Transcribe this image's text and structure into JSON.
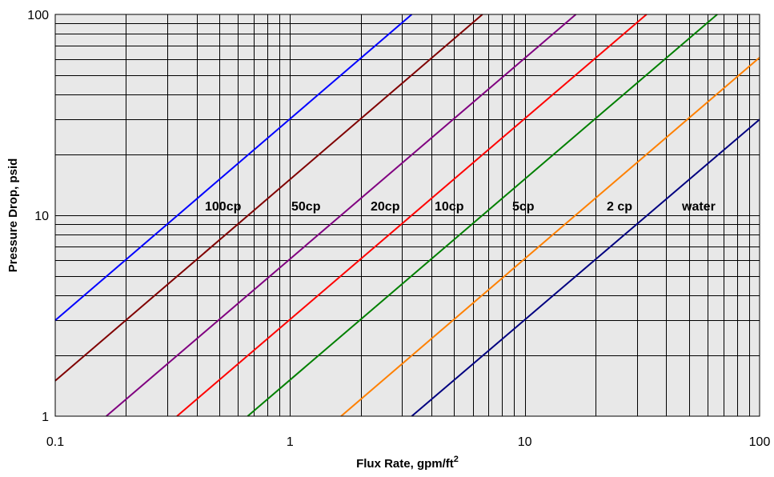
{
  "chart_data": {
    "type": "line",
    "xlabel": "Flux Rate, gpm/ft",
    "xlabel_superscript": "2",
    "ylabel": "Pressure Drop, psid",
    "x_scale": "log",
    "y_scale": "log",
    "xlim": [
      0.1,
      100
    ],
    "ylim": [
      1,
      100
    ],
    "x_ticks": [
      "0.1",
      "1",
      "10",
      "100"
    ],
    "y_ticks": [
      "1",
      "10",
      "100"
    ],
    "grid": true,
    "legend": "none",
    "plot_background": "#e8e8e8",
    "series": [
      {
        "name": "100cp",
        "color": "#0000ff",
        "x": [
          0.1,
          3.3
        ],
        "y": [
          3.0,
          100
        ]
      },
      {
        "name": "50cp",
        "color": "#800000",
        "x": [
          0.1,
          6.6
        ],
        "y": [
          1.5,
          100
        ]
      },
      {
        "name": "20cp",
        "color": "#800080",
        "x": [
          0.165,
          16.5
        ],
        "y": [
          1,
          100
        ]
      },
      {
        "name": "10cp",
        "color": "#ff0000",
        "x": [
          0.33,
          33
        ],
        "y": [
          1,
          100
        ]
      },
      {
        "name": "5cp",
        "color": "#008000",
        "x": [
          0.66,
          66
        ],
        "y": [
          1,
          100
        ]
      },
      {
        "name": "2 cp",
        "color": "#ff8000",
        "x": [
          1.65,
          100
        ],
        "y": [
          1,
          61
        ]
      },
      {
        "name": "water",
        "color": "#000080",
        "x": [
          3.3,
          100
        ],
        "y": [
          1,
          30
        ]
      }
    ]
  }
}
